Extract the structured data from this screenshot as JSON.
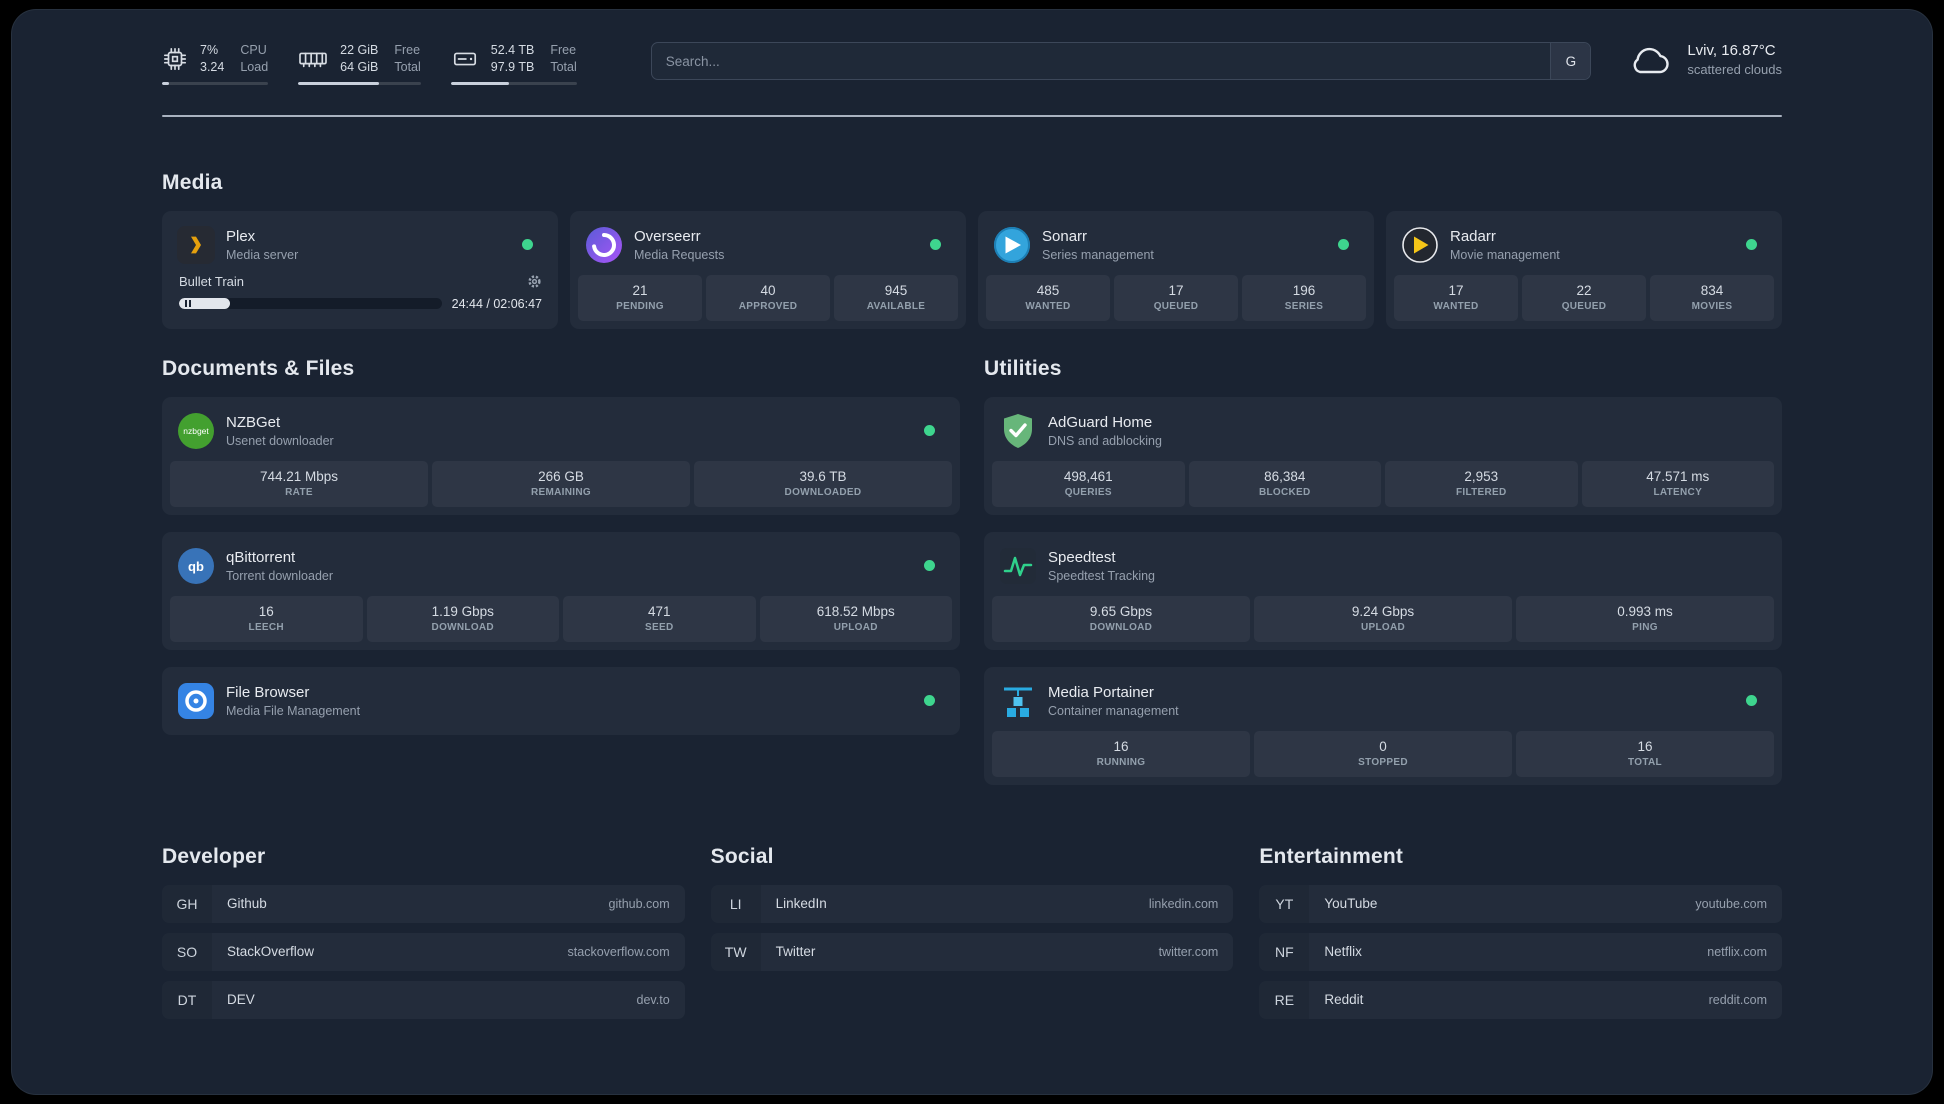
{
  "topbar": {
    "resources": [
      {
        "icon": "cpu-icon",
        "val1": "7%",
        "val2": "3.24",
        "lab1": "CPU",
        "lab2": "Load",
        "fill_pct": 7
      },
      {
        "icon": "memory-icon",
        "val1": "22 GiB",
        "val2": "64 GiB",
        "lab1": "Free",
        "lab2": "Total",
        "fill_pct": 66
      },
      {
        "icon": "disk-icon",
        "val1": "52.4 TB",
        "val2": "97.9 TB",
        "lab1": "Free",
        "lab2": "Total",
        "fill_pct": 46
      }
    ],
    "search": {
      "placeholder": "Search...",
      "provider_label": "G"
    },
    "weather": {
      "location": "Lviv, 16.87°C",
      "condition": "scattered clouds"
    }
  },
  "groups": {
    "media": {
      "title": "Media",
      "services": [
        {
          "name": "Plex",
          "desc": "Media server",
          "icon": "plex-icon",
          "online": true,
          "player": {
            "title": "Bullet Train",
            "time": "24:44 / 02:06:47",
            "progress_pct": 19.5
          }
        },
        {
          "name": "Overseerr",
          "desc": "Media Requests",
          "icon": "overseerr-icon",
          "online": true,
          "stats": [
            {
              "v": "21",
              "l": "PENDING"
            },
            {
              "v": "40",
              "l": "APPROVED"
            },
            {
              "v": "945",
              "l": "AVAILABLE"
            }
          ]
        },
        {
          "name": "Sonarr",
          "desc": "Series management",
          "icon": "sonarr-icon",
          "online": true,
          "stats": [
            {
              "v": "485",
              "l": "WANTED"
            },
            {
              "v": "17",
              "l": "QUEUED"
            },
            {
              "v": "196",
              "l": "SERIES"
            }
          ]
        },
        {
          "name": "Radarr",
          "desc": "Movie management",
          "icon": "radarr-icon",
          "online": true,
          "stats": [
            {
              "v": "17",
              "l": "WANTED"
            },
            {
              "v": "22",
              "l": "QUEUED"
            },
            {
              "v": "834",
              "l": "MOVIES"
            }
          ]
        }
      ]
    },
    "documents": {
      "title": "Documents & Files",
      "services": [
        {
          "name": "NZBGet",
          "desc": "Usenet downloader",
          "icon": "nzbget-icon",
          "online": true,
          "stats": [
            {
              "v": "744.21 Mbps",
              "l": "RATE"
            },
            {
              "v": "266 GB",
              "l": "REMAINING"
            },
            {
              "v": "39.6 TB",
              "l": "DOWNLOADED"
            }
          ]
        },
        {
          "name": "qBittorrent",
          "desc": "Torrent downloader",
          "icon": "qbittorrent-icon",
          "online": true,
          "stats": [
            {
              "v": "16",
              "l": "LEECH"
            },
            {
              "v": "1.19 Gbps",
              "l": "DOWNLOAD"
            },
            {
              "v": "471",
              "l": "SEED"
            },
            {
              "v": "618.52 Mbps",
              "l": "UPLOAD"
            }
          ]
        },
        {
          "name": "File Browser",
          "desc": "Media File Management",
          "icon": "filebrowser-icon",
          "online": true
        }
      ]
    },
    "utilities": {
      "title": "Utilities",
      "services": [
        {
          "name": "AdGuard Home",
          "desc": "DNS and adblocking",
          "icon": "adguard-icon",
          "stats": [
            {
              "v": "498,461",
              "l": "QUERIES"
            },
            {
              "v": "86,384",
              "l": "BLOCKED"
            },
            {
              "v": "2,953",
              "l": "FILTERED"
            },
            {
              "v": "47.571 ms",
              "l": "LATENCY"
            }
          ]
        },
        {
          "name": "Speedtest",
          "desc": "Speedtest Tracking",
          "icon": "speedtest-icon",
          "stats": [
            {
              "v": "9.65 Gbps",
              "l": "DOWNLOAD"
            },
            {
              "v": "9.24 Gbps",
              "l": "UPLOAD"
            },
            {
              "v": "0.993 ms",
              "l": "PING"
            }
          ]
        },
        {
          "name": "Media Portainer",
          "desc": "Container management",
          "icon": "portainer-icon",
          "online": true,
          "stats": [
            {
              "v": "16",
              "l": "RUNNING"
            },
            {
              "v": "0",
              "l": "STOPPED"
            },
            {
              "v": "16",
              "l": "TOTAL"
            }
          ]
        }
      ]
    }
  },
  "bookmarks": [
    {
      "title": "Developer",
      "items": [
        {
          "abbr": "GH",
          "name": "Github",
          "domain": "github.com"
        },
        {
          "abbr": "SO",
          "name": "StackOverflow",
          "domain": "stackoverflow.com"
        },
        {
          "abbr": "DT",
          "name": "DEV",
          "domain": "dev.to"
        }
      ]
    },
    {
      "title": "Social",
      "items": [
        {
          "abbr": "LI",
          "name": "LinkedIn",
          "domain": "linkedin.com"
        },
        {
          "abbr": "TW",
          "name": "Twitter",
          "domain": "twitter.com"
        }
      ]
    },
    {
      "title": "Entertainment",
      "items": [
        {
          "abbr": "YT",
          "name": "YouTube",
          "domain": "youtube.com"
        },
        {
          "abbr": "NF",
          "name": "Netflix",
          "domain": "netflix.com"
        },
        {
          "abbr": "RE",
          "name": "Reddit",
          "domain": "reddit.com"
        }
      ]
    }
  ],
  "colors": {
    "status_green": "#3ed58e",
    "plex_yellow": "#e5a00d",
    "overseerr_purple": "#a855f7",
    "sonarr_blue": "#33a4dc",
    "radarr_yellow": "#f5c518",
    "nzbget_green": "#43a02f",
    "qbittorrent_blue": "#3873b8",
    "filebrowser_blue": "#3584e4",
    "adguard_green": "#67b67a",
    "speedtest_green": "#2fd28c",
    "portainer_blue": "#29abe2"
  }
}
